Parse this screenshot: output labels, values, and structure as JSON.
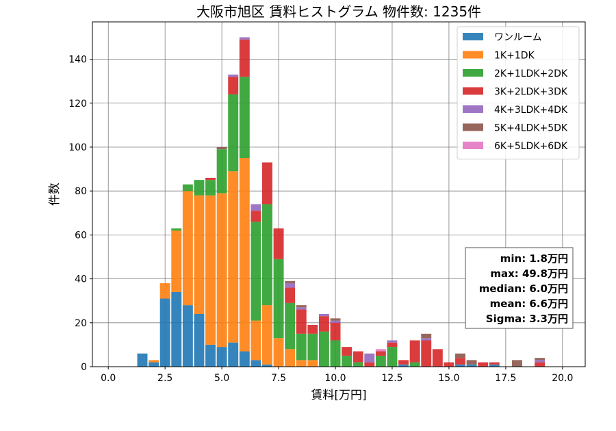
{
  "chart_data": {
    "type": "bar",
    "stacked": true,
    "title": "大阪市旭区 賃料ヒストグラム 物件数: 1235件",
    "xlabel": "賃料[万円]",
    "ylabel": "件数",
    "xlim": [
      -0.7,
      21.0
    ],
    "ylim": [
      0,
      157
    ],
    "xticks": [
      "0.0",
      "2.5",
      "5.0",
      "7.5",
      "10.0",
      "12.5",
      "15.0",
      "17.5",
      "20.0"
    ],
    "yticks": [
      "0",
      "20",
      "40",
      "60",
      "80",
      "100",
      "120",
      "140"
    ],
    "grid": true,
    "legend_position": "top-right",
    "bin_width": 0.5,
    "x": [
      1.5,
      2.0,
      2.5,
      3.0,
      3.5,
      4.0,
      4.5,
      5.0,
      5.5,
      6.0,
      6.5,
      7.0,
      7.5,
      8.0,
      8.5,
      9.0,
      9.5,
      10.0,
      10.5,
      11.0,
      11.5,
      12.0,
      12.5,
      13.0,
      13.5,
      14.0,
      14.5,
      15.0,
      15.5,
      16.0,
      16.5,
      17.0,
      17.5,
      18.0,
      18.5,
      19.0,
      19.5,
      20.0
    ],
    "series": [
      {
        "name": "ワンルーム",
        "color": "#1f77b4",
        "values": [
          6,
          2,
          31,
          34,
          28,
          24,
          10,
          9,
          11,
          7,
          3,
          1,
          0,
          0,
          0,
          0,
          0,
          0,
          0,
          0,
          0,
          0,
          0,
          1,
          0,
          0,
          0,
          0,
          1,
          1,
          0,
          1,
          0,
          0,
          0,
          0,
          0,
          0
        ]
      },
      {
        "name": "1K+1DK",
        "color": "#ff7f0e",
        "values": [
          0,
          1,
          7,
          28,
          52,
          54,
          68,
          70,
          78,
          88,
          18,
          27,
          13,
          8,
          3,
          3,
          0,
          0,
          0,
          0,
          0,
          0,
          0,
          0,
          0,
          0,
          0,
          0,
          0,
          0,
          0,
          0,
          0,
          0,
          0,
          0,
          0,
          0
        ]
      },
      {
        "name": "2K+1LDK+2DK",
        "color": "#2ca02c",
        "values": [
          0,
          0,
          0,
          1,
          3,
          7,
          7,
          20,
          35,
          37,
          45,
          46,
          36,
          21,
          12,
          12,
          16,
          12,
          5,
          2,
          0,
          5,
          9,
          0,
          2,
          0,
          0,
          0,
          0,
          0,
          0,
          0,
          0,
          0,
          0,
          0,
          0,
          0
        ]
      },
      {
        "name": "3K+2LDK+3DK",
        "color": "#d62728",
        "values": [
          0,
          0,
          0,
          0,
          0,
          0,
          1,
          0,
          8,
          17,
          5,
          19,
          14,
          7,
          11,
          4,
          7,
          8,
          4,
          5,
          2,
          2,
          2,
          2,
          10,
          12,
          8,
          2,
          3,
          0,
          2,
          1,
          0,
          0,
          0,
          2,
          0,
          0
        ]
      },
      {
        "name": "4K+3LDK+4DK",
        "color": "#9467bd",
        "values": [
          0,
          0,
          0,
          0,
          0,
          0,
          0,
          0,
          1,
          1,
          3,
          0,
          0,
          2,
          1,
          0,
          1,
          1,
          0,
          0,
          4,
          0,
          1,
          0,
          0,
          1,
          0,
          0,
          0,
          0,
          0,
          0,
          0,
          0,
          0,
          1,
          0,
          0
        ]
      },
      {
        "name": "5K+4LDK+5DK",
        "color": "#8c564b",
        "values": [
          0,
          0,
          0,
          0,
          0,
          0,
          0,
          1,
          0,
          0,
          0,
          0,
          0,
          1,
          1,
          0,
          0,
          1,
          0,
          0,
          0,
          0,
          0,
          0,
          0,
          2,
          0,
          0,
          2,
          2,
          0,
          0,
          0,
          3,
          0,
          1,
          0,
          0
        ]
      },
      {
        "name": "6K+5LDK+6DK",
        "color": "#e377c2",
        "values": [
          0,
          0,
          0,
          0,
          0,
          0,
          0,
          0,
          0,
          0,
          0,
          0,
          0,
          0,
          0,
          0,
          0,
          0,
          0,
          0,
          0,
          1,
          0,
          0,
          0,
          0,
          0,
          0,
          0,
          0,
          0,
          0,
          0,
          0,
          0,
          0,
          0,
          0
        ]
      }
    ],
    "annotations": [
      "min: 1.8万円",
      "max: 49.8万円",
      "median: 6.0万円",
      "mean: 6.6万円",
      "Sigma: 3.3万円"
    ]
  }
}
